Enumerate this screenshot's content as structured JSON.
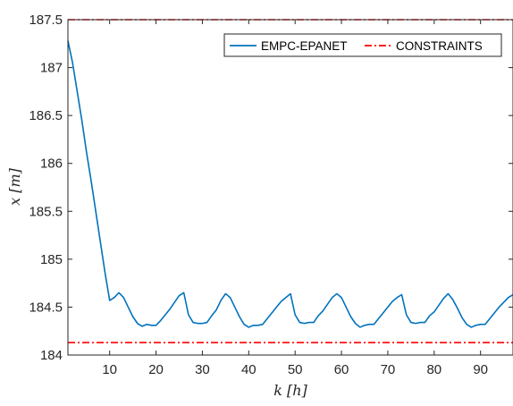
{
  "chart_data": {
    "type": "line",
    "xlabel": "k [h]",
    "ylabel": "x [m]",
    "xlim": [
      1,
      97
    ],
    "ylim": [
      184,
      187.5
    ],
    "xticks": [
      10,
      20,
      30,
      40,
      50,
      60,
      70,
      80,
      90
    ],
    "yticks": [
      184,
      184.5,
      185,
      185.5,
      186,
      186.5,
      187,
      187.5
    ],
    "grid": false,
    "legend_position": "top-right",
    "colors": {
      "main": "#0072BD",
      "constraint": "#FF0000"
    },
    "series": [
      {
        "name": "EMPC-EPANET",
        "style": "solid",
        "x": [
          1,
          2,
          3,
          4,
          5,
          6,
          7,
          8,
          9,
          10,
          11,
          12,
          13,
          14,
          15,
          16,
          17,
          18,
          19,
          20,
          21,
          22,
          23,
          24,
          25,
          26,
          27,
          28,
          29,
          30,
          31,
          32,
          33,
          34,
          35,
          36,
          37,
          38,
          39,
          40,
          41,
          42,
          43,
          44,
          45,
          46,
          47,
          48,
          49,
          50,
          51,
          52,
          53,
          54,
          55,
          56,
          57,
          58,
          59,
          60,
          61,
          62,
          63,
          64,
          65,
          66,
          67,
          68,
          69,
          70,
          71,
          72,
          73,
          74,
          75,
          76,
          77,
          78,
          79,
          80,
          81,
          82,
          83,
          84,
          85,
          86,
          87,
          88,
          89,
          90,
          91,
          92,
          93,
          94,
          95,
          96,
          97
        ],
        "y": [
          187.28,
          187.05,
          186.75,
          186.45,
          186.12,
          185.82,
          185.5,
          185.18,
          184.86,
          184.57,
          184.6,
          184.65,
          184.6,
          184.5,
          184.4,
          184.33,
          184.3,
          184.32,
          184.31,
          184.31,
          184.36,
          184.42,
          184.48,
          184.55,
          184.62,
          184.65,
          184.42,
          184.34,
          184.33,
          184.33,
          184.34,
          184.41,
          184.47,
          184.57,
          184.64,
          184.6,
          184.5,
          184.4,
          184.32,
          184.29,
          184.31,
          184.31,
          184.32,
          184.38,
          184.44,
          184.5,
          184.56,
          184.6,
          184.64,
          184.42,
          184.34,
          184.33,
          184.34,
          184.34,
          184.41,
          184.46,
          184.53,
          184.6,
          184.64,
          184.6,
          184.5,
          184.4,
          184.33,
          184.29,
          184.31,
          184.32,
          184.32,
          184.38,
          184.44,
          184.5,
          184.56,
          184.6,
          184.63,
          184.42,
          184.34,
          184.33,
          184.34,
          184.34,
          184.41,
          184.45,
          184.52,
          184.59,
          184.64,
          184.58,
          184.49,
          184.39,
          184.32,
          184.29,
          184.31,
          184.32,
          184.32,
          184.38,
          184.44,
          184.5,
          184.55,
          184.6,
          184.63
        ]
      },
      {
        "name": "CONSTRAINTS",
        "style": "dashdot",
        "x": [
          1,
          97
        ],
        "y": [
          187.5,
          187.5
        ]
      },
      {
        "name": "",
        "style": "dashdot",
        "x": [
          1,
          97
        ],
        "y": [
          184.13,
          184.13
        ]
      }
    ]
  }
}
